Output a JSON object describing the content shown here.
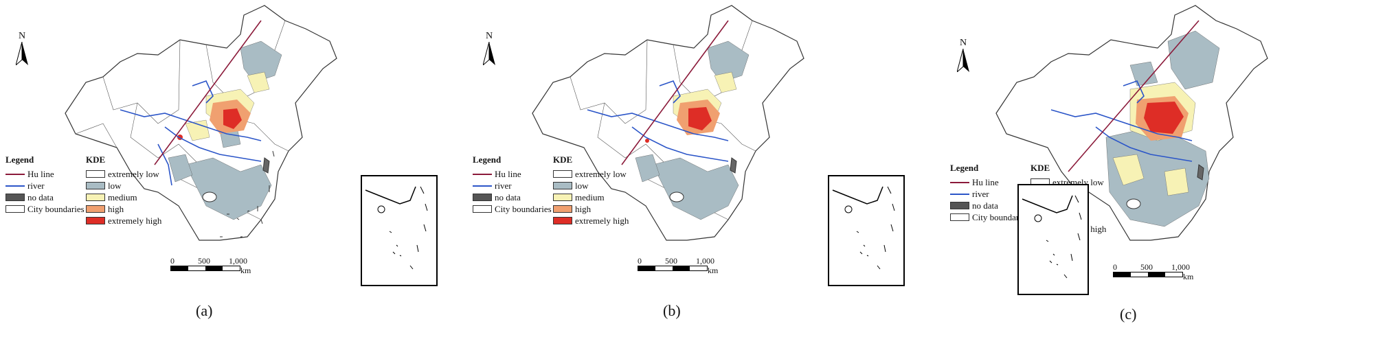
{
  "panels": [
    {
      "caption": "(a)",
      "north": "N"
    },
    {
      "caption": "(b)",
      "north": "N"
    },
    {
      "caption": "(c)",
      "north": "N"
    }
  ],
  "legend": {
    "title": "Legend",
    "items": [
      "Hu line",
      "river",
      "no data",
      "City boundaries"
    ]
  },
  "kde": {
    "title": "KDE",
    "classes": [
      "extremely low",
      "low",
      "medium",
      "high",
      "extremely high"
    ],
    "colors": [
      "#ffffff",
      "#a9bcc4",
      "#f7f2b5",
      "#f0a070",
      "#de2d26"
    ]
  },
  "colors": {
    "hu_line": "#8b1a3a",
    "river": "#2b55c8",
    "no_data": "#555555"
  },
  "scale": {
    "ticks": [
      "0",
      "500",
      "1,000"
    ],
    "unit": "km"
  }
}
